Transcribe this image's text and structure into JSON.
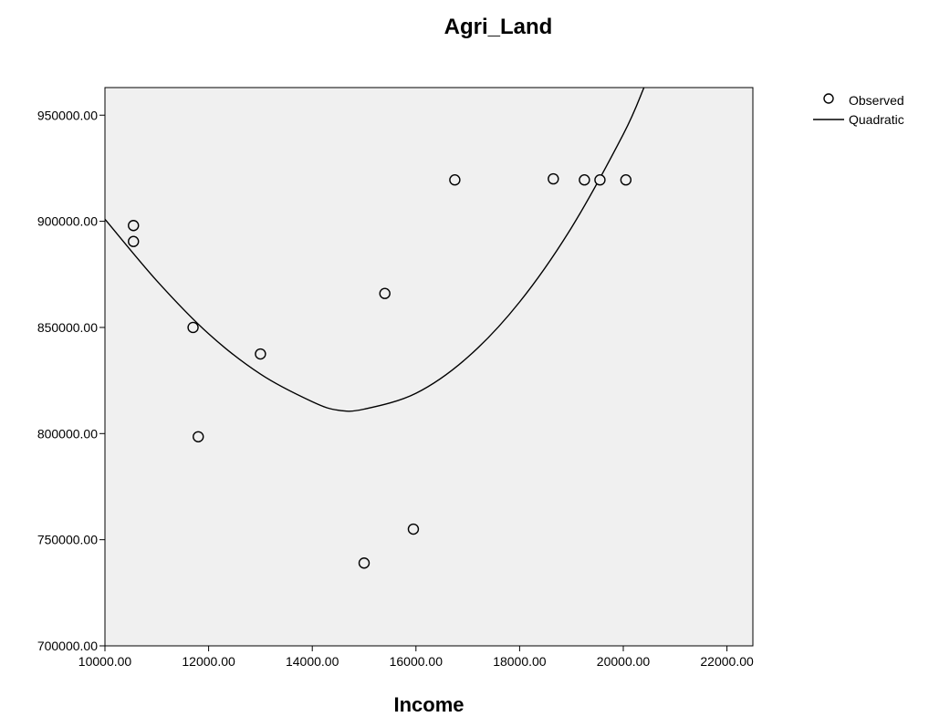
{
  "chart_data": {
    "type": "scatter",
    "title": "Agri_Land",
    "xlabel": "Income",
    "ylabel": "",
    "xlim": [
      10000,
      22500
    ],
    "ylim": [
      700000,
      963000
    ],
    "x_ticks": [
      10000,
      12000,
      14000,
      16000,
      18000,
      20000,
      22000
    ],
    "x_tick_labels": [
      "10000.00",
      "12000.00",
      "14000.00",
      "16000.00",
      "18000.00",
      "20000.00",
      "22000.00"
    ],
    "y_ticks": [
      700000,
      750000,
      800000,
      850000,
      900000,
      950000
    ],
    "y_tick_labels": [
      "700000.00",
      "750000.00",
      "800000.00",
      "850000.00",
      "900000.00",
      "950000.00"
    ],
    "grid": false,
    "legend_position": "top-right",
    "series": [
      {
        "name": "Observed",
        "kind": "points",
        "points": [
          {
            "x": 10550,
            "y": 898000
          },
          {
            "x": 10550,
            "y": 890500
          },
          {
            "x": 11700,
            "y": 850000
          },
          {
            "x": 11800,
            "y": 798500
          },
          {
            "x": 13000,
            "y": 837500
          },
          {
            "x": 15000,
            "y": 739000
          },
          {
            "x": 15400,
            "y": 866000
          },
          {
            "x": 15950,
            "y": 755000
          },
          {
            "x": 16750,
            "y": 919500
          },
          {
            "x": 18650,
            "y": 920000
          },
          {
            "x": 19250,
            "y": 919500
          },
          {
            "x": 19550,
            "y": 919500
          },
          {
            "x": 20050,
            "y": 919500
          }
        ]
      },
      {
        "name": "Quadratic",
        "kind": "curve",
        "curve": [
          {
            "x": 10000,
            "y": 901000
          },
          {
            "x": 11000,
            "y": 872000
          },
          {
            "x": 12000,
            "y": 847000
          },
          {
            "x": 13000,
            "y": 828000
          },
          {
            "x": 14000,
            "y": 815000
          },
          {
            "x": 14500,
            "y": 811000
          },
          {
            "x": 15000,
            "y": 811500
          },
          {
            "x": 16000,
            "y": 819000
          },
          {
            "x": 17000,
            "y": 836000
          },
          {
            "x": 18000,
            "y": 862000
          },
          {
            "x": 19000,
            "y": 897000
          },
          {
            "x": 20000,
            "y": 941000
          },
          {
            "x": 20400,
            "y": 963000
          }
        ]
      }
    ],
    "colors": {
      "plot_background": "#f0f0f0",
      "line": "#000000",
      "marker_stroke": "#000000",
      "marker_fill": "#f0f0f0"
    }
  }
}
